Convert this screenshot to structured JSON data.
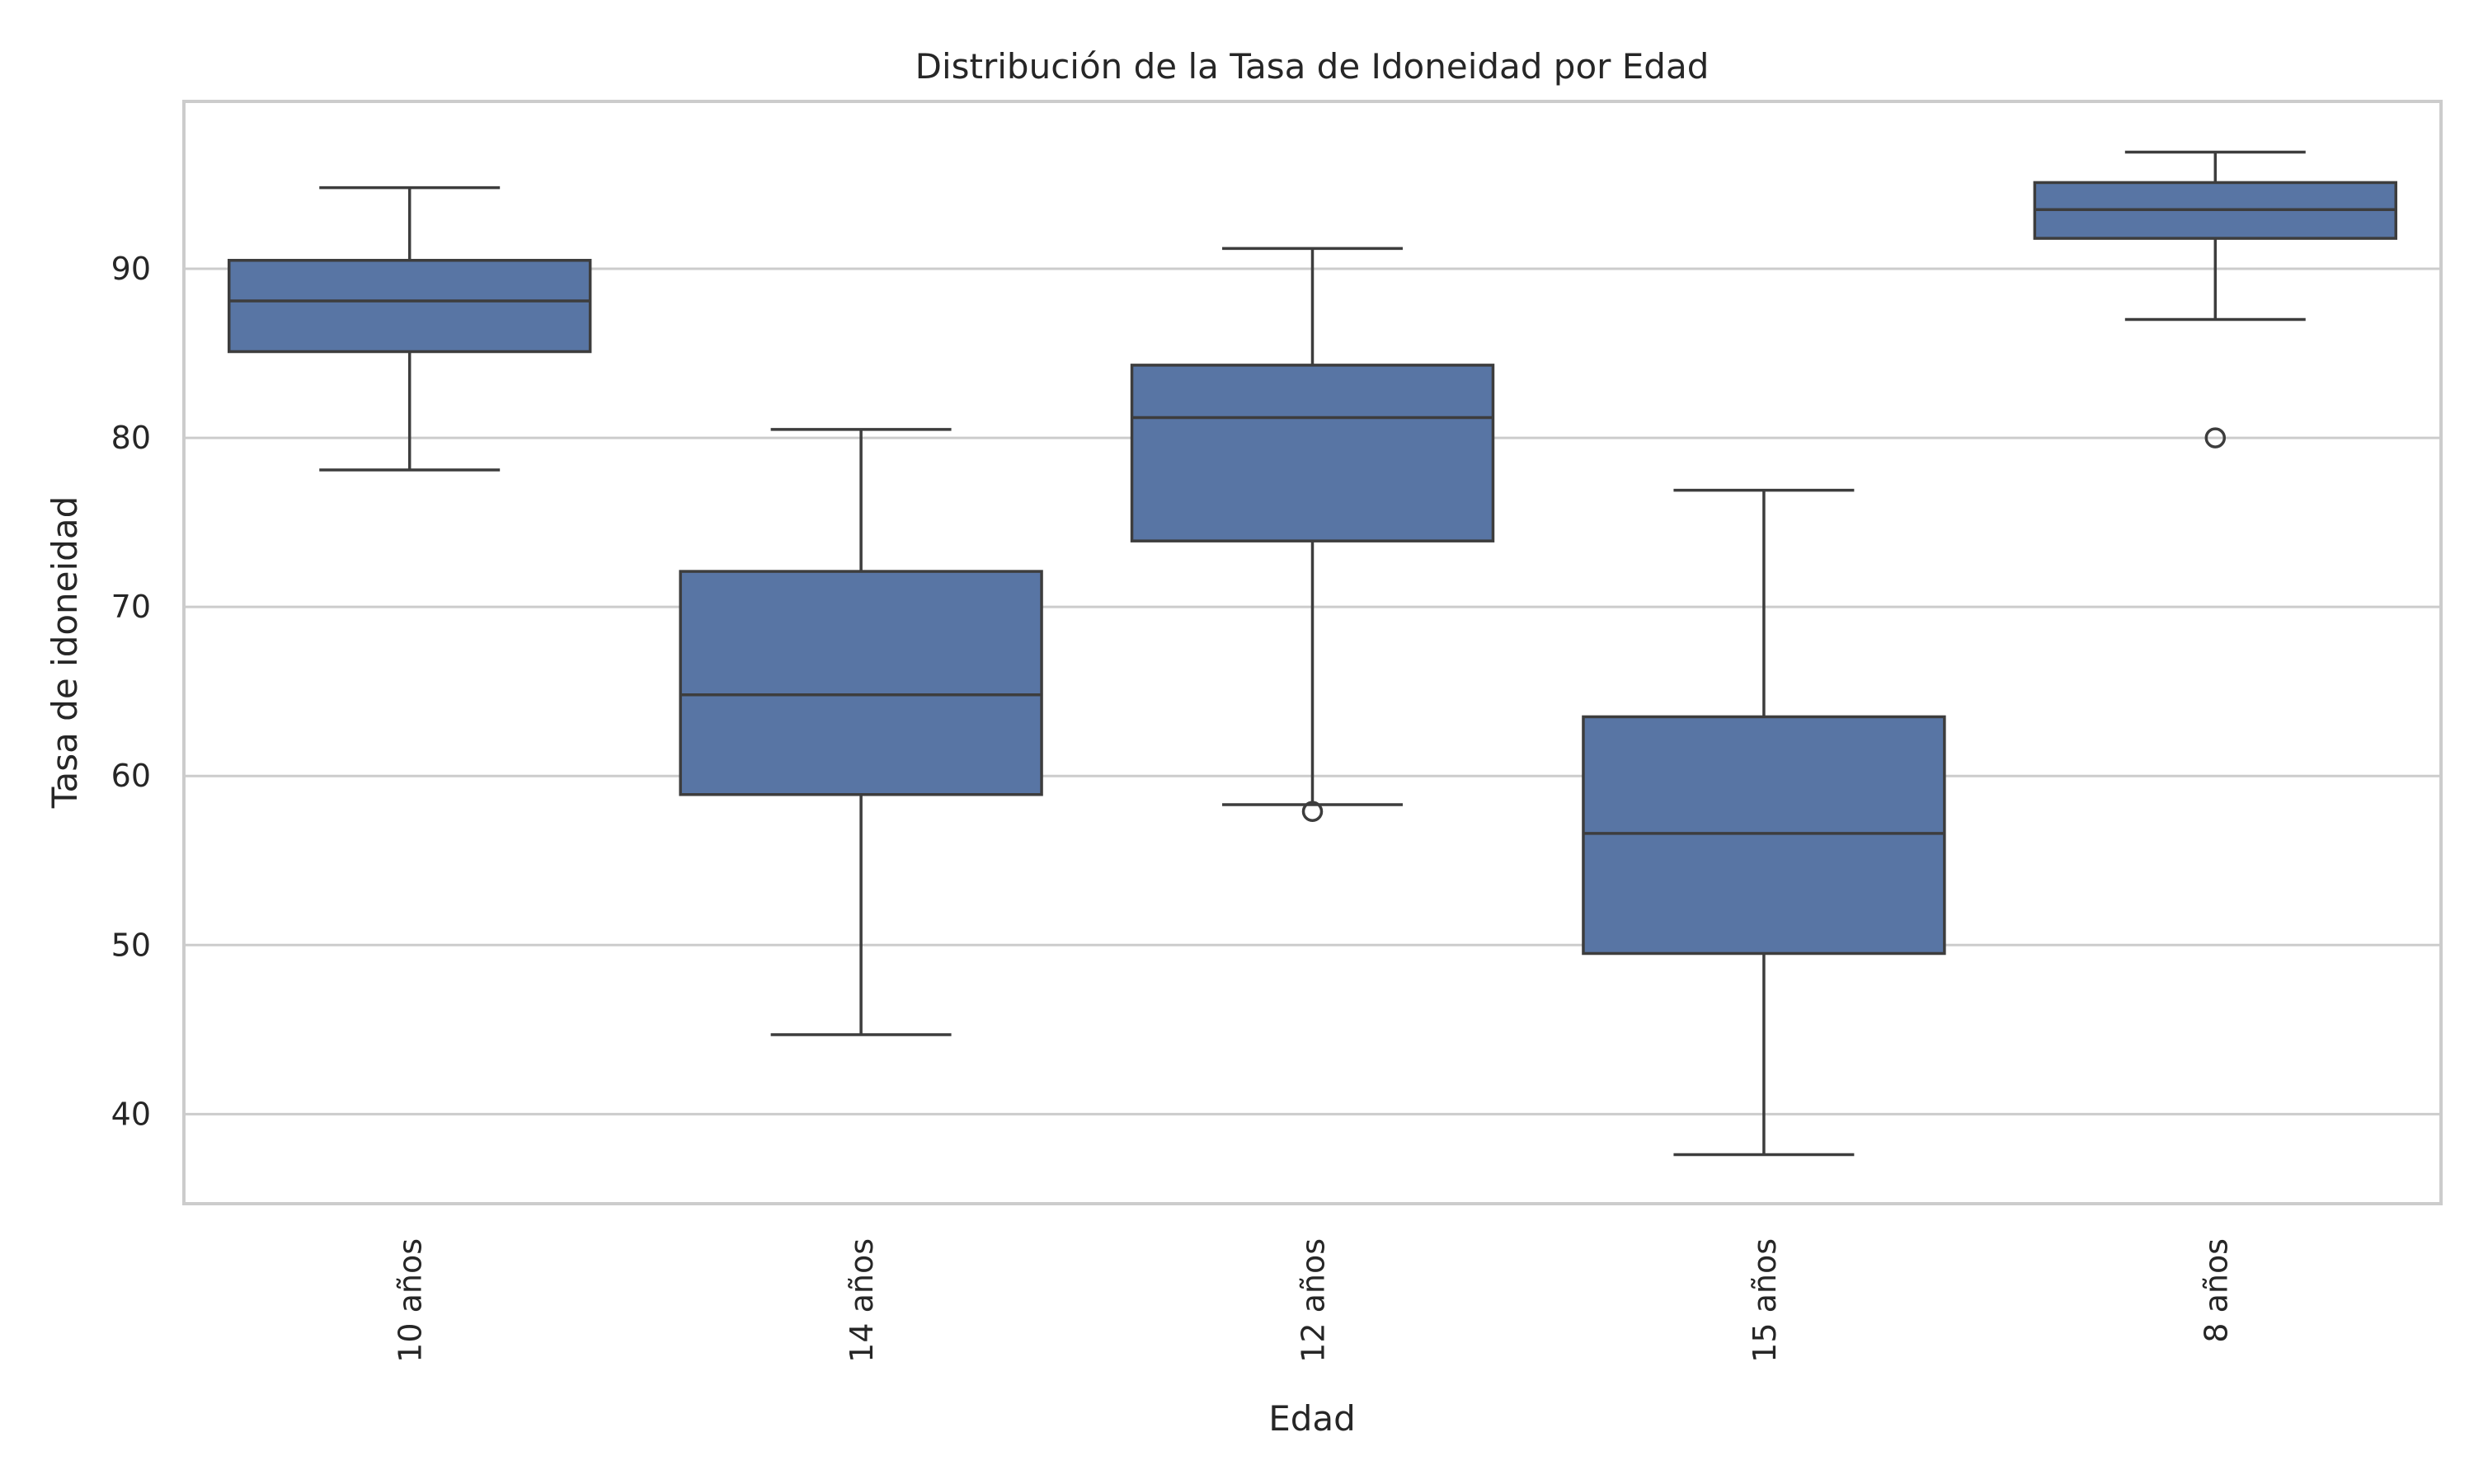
{
  "chart_data": {
    "type": "box",
    "title": "Distribución de la Tasa de Idoneidad por Edad",
    "xlabel": "Edad",
    "ylabel": "Tasa de idoneidad",
    "categories": [
      "10 años",
      "14 años",
      "12 años",
      "15 años",
      "8 años"
    ],
    "yticks": [
      40,
      50,
      60,
      70,
      80,
      90
    ],
    "ylim": [
      34.7,
      99.9
    ],
    "grid": "horizontal",
    "box_color": "#5875a4",
    "line_color": "#3d3d3d",
    "boxes": [
      {
        "category": "10 años",
        "whisker_low": 78.1,
        "q1": 85.1,
        "median": 88.1,
        "q3": 90.5,
        "whisker_high": 94.8,
        "outliers": []
      },
      {
        "category": "14 años",
        "whisker_low": 44.7,
        "q1": 58.9,
        "median": 64.8,
        "q3": 72.1,
        "whisker_high": 80.5,
        "outliers": []
      },
      {
        "category": "12 años",
        "whisker_low": 58.3,
        "q1": 73.9,
        "median": 81.2,
        "q3": 84.3,
        "whisker_high": 91.2,
        "outliers": [
          57.9
        ]
      },
      {
        "category": "15 años",
        "whisker_low": 37.6,
        "q1": 49.5,
        "median": 56.6,
        "q3": 63.5,
        "whisker_high": 76.9,
        "outliers": []
      },
      {
        "category": "8 años",
        "whisker_low": 87.0,
        "q1": 91.8,
        "median": 93.5,
        "q3": 95.1,
        "whisker_high": 96.9,
        "outliers": [
          80.0
        ]
      }
    ]
  }
}
